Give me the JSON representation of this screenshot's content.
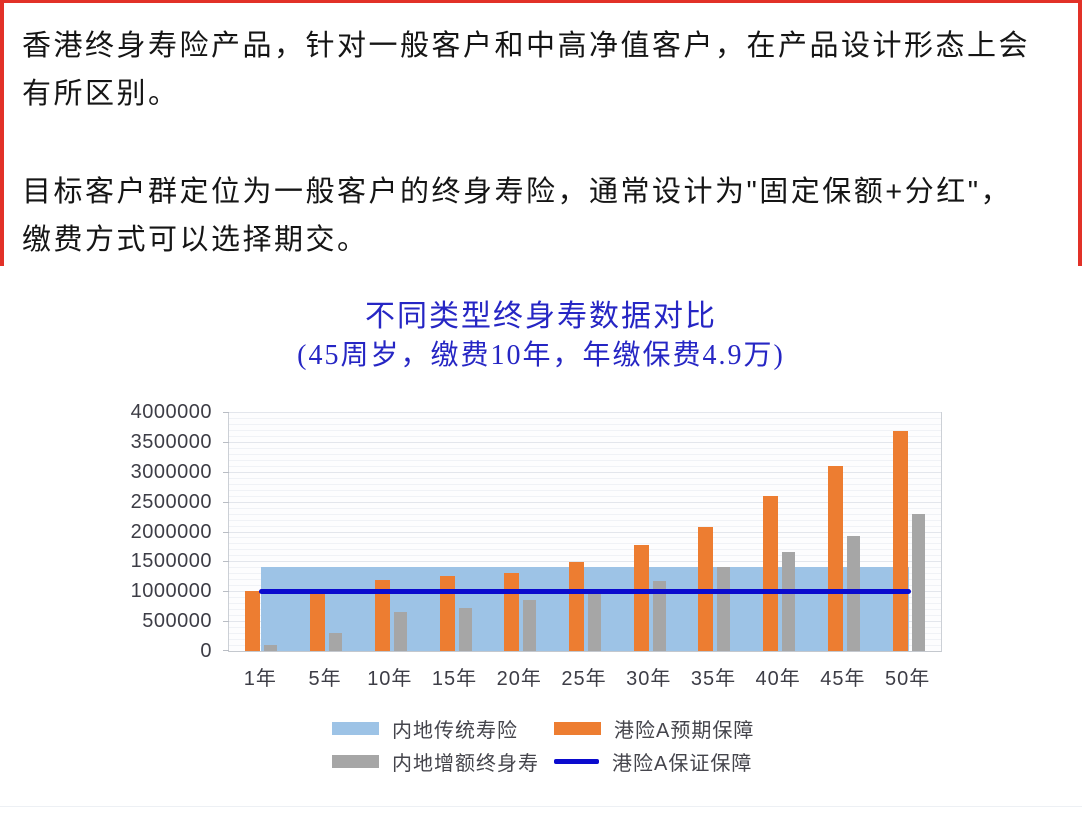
{
  "page": {
    "accent_red": "#e23128",
    "paragraph_1": "香港终身寿险产品，针对一般客户和中高净值客户，在产品设计形态上会有所区别。",
    "paragraph_2": "目标客户群定位为一般客户的终身寿险，通常设计为\"固定保额+分红\"，缴费方式可以选择期交。"
  },
  "chart_data": {
    "type": "bar",
    "subtype": "combo-area-bar-line",
    "title": "不同类型终身寿数据对比",
    "subtitle": "(45周岁，缴费10年，年缴保费4.9万)",
    "title_color": "#2626c4",
    "categories": [
      "1年",
      "5年",
      "10年",
      "15年",
      "20年",
      "25年",
      "30年",
      "35年",
      "40年",
      "45年",
      "50年"
    ],
    "series": [
      {
        "name": "内地传统寿险",
        "type": "area",
        "color": "#9DC3E6",
        "values": [
          1400000,
          1400000,
          1400000,
          1400000,
          1400000,
          1400000,
          1400000,
          1400000,
          1400000,
          1400000,
          1400000
        ]
      },
      {
        "name": "港险A预期保障",
        "type": "bar",
        "color": "#ED7D31",
        "values": [
          1000000,
          970000,
          1190000,
          1260000,
          1300000,
          1490000,
          1780000,
          2080000,
          2590000,
          3090000,
          3690000
        ]
      },
      {
        "name": "内地增额终身寿",
        "type": "bar",
        "color": "#A6A6A6",
        "values": [
          100000,
          300000,
          650000,
          720000,
          850000,
          950000,
          1180000,
          1400000,
          1650000,
          1920000,
          2290000
        ]
      },
      {
        "name": "港险A保证保障",
        "type": "line",
        "color": "#0B0BCE",
        "values": [
          1000000,
          1000000,
          1000000,
          1000000,
          1000000,
          1000000,
          1000000,
          1000000,
          1000000,
          1000000,
          1000000
        ]
      }
    ],
    "ylim": [
      0,
      4000000
    ],
    "ytick_step": 500000,
    "minor_grid_step": 100000,
    "yticks": [
      0,
      500000,
      1000000,
      1500000,
      2000000,
      2500000,
      3000000,
      3500000,
      4000000
    ],
    "grid": true,
    "legend_position": "bottom"
  }
}
